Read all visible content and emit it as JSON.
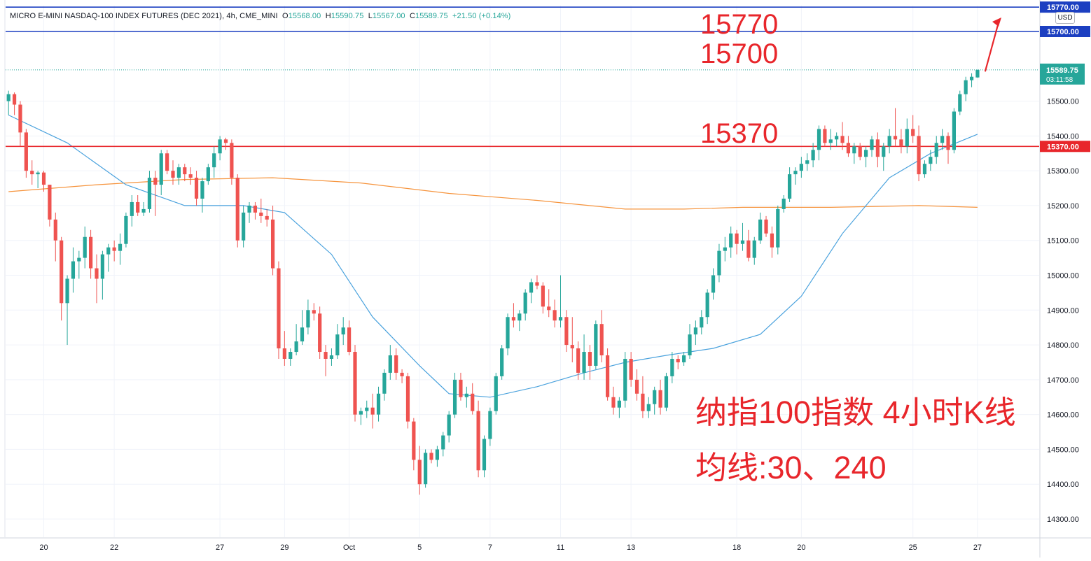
{
  "header": {
    "symbol": "MICRO E-MINI NASDAQ-100 INDEX FUTURES (DEC 2021), 4h, CME_MINI",
    "o_label": "O",
    "o_value": "15568.00",
    "h_label": "H",
    "h_value": "15590.75",
    "l_label": "L",
    "l_value": "15567.00",
    "c_label": "C",
    "c_value": "15589.75",
    "change": "+21.50 (+0.14%)"
  },
  "currency_label": "USD",
  "annotations": {
    "level_15770": "15770",
    "level_15700": "15700",
    "level_15370": "15370",
    "title_line1": "纳指100指数 4小时K线",
    "title_line2": "均线:30、240"
  },
  "chart_data": {
    "type": "candlestick",
    "title": "",
    "timeframe": "4h",
    "xlabel": "",
    "ylabel": "",
    "ylim": [
      14270,
      15780
    ],
    "grid": true,
    "colors": {
      "up": "#26a69a",
      "down": "#ef5350",
      "ma30": "#4aa2dd",
      "ma240": "#f6943d",
      "hline_blue": "#1c3fc1",
      "hline_red": "#e8262b",
      "annotation": "#e8262b",
      "last_price": "#26a69a"
    },
    "y_ticks": [
      "14300.00",
      "14400.00",
      "14500.00",
      "14600.00",
      "14700.00",
      "14800.00",
      "14900.00",
      "15000.00",
      "15100.00",
      "15200.00",
      "15300.00",
      "15400.00",
      "15500.00"
    ],
    "x_ticks": [
      {
        "label": "20",
        "x": 6
      },
      {
        "label": "22",
        "x": 18
      },
      {
        "label": "27",
        "x": 36
      },
      {
        "label": "29",
        "x": 47
      },
      {
        "label": "Oct",
        "x": 58
      },
      {
        "label": "5",
        "x": 70
      },
      {
        "label": "7",
        "x": 82
      },
      {
        "label": "11",
        "x": 94
      },
      {
        "label": "13",
        "x": 106
      },
      {
        "label": "18",
        "x": 124
      },
      {
        "label": "20",
        "x": 135
      },
      {
        "label": "25",
        "x": 154
      },
      {
        "label": "27",
        "x": 165
      }
    ],
    "x_range": [
      -0.5,
      175.5
    ],
    "horizontal_lines": [
      {
        "value": 15770,
        "label": "15770.00",
        "color": "#1c3fc1"
      },
      {
        "value": 15700,
        "label": "15700.00",
        "color": "#1c3fc1"
      },
      {
        "value": 15370,
        "label": "15370.00",
        "color": "#e8262b"
      }
    ],
    "last_price": {
      "label": "15589.75",
      "countdown": "03:11:58",
      "value": 15589.75
    },
    "candles": [
      [
        0,
        15500,
        15530,
        15460,
        15520
      ],
      [
        1,
        15520,
        15525,
        15460,
        15490
      ],
      [
        2,
        15490,
        15500,
        15370,
        15410
      ],
      [
        3,
        15410,
        15420,
        15280,
        15300
      ],
      [
        4,
        15300,
        15330,
        15260,
        15290
      ],
      [
        5,
        15290,
        15300,
        15250,
        15295
      ],
      [
        6,
        15295,
        15300,
        15240,
        15260
      ],
      [
        7,
        15260,
        15260,
        15140,
        15160
      ],
      [
        8,
        15160,
        15180,
        15040,
        15100
      ],
      [
        9,
        15100,
        15110,
        14870,
        14920
      ],
      [
        10,
        14920,
        15000,
        14800,
        14990
      ],
      [
        11,
        14990,
        15080,
        14950,
        15040
      ],
      [
        12,
        15040,
        15070,
        14990,
        15050
      ],
      [
        13,
        15050,
        15140,
        15020,
        15110
      ],
      [
        14,
        15110,
        15130,
        14990,
        15020
      ],
      [
        15,
        15020,
        15060,
        14920,
        14990
      ],
      [
        16,
        14990,
        15070,
        14930,
        15060
      ],
      [
        17,
        15060,
        15090,
        15010,
        15080
      ],
      [
        18,
        15080,
        15100,
        15040,
        15070
      ],
      [
        19,
        15070,
        15120,
        15030,
        15090
      ],
      [
        20,
        15090,
        15180,
        15080,
        15170
      ],
      [
        21,
        15170,
        15230,
        15140,
        15210
      ],
      [
        22,
        15210,
        15230,
        15170,
        15180
      ],
      [
        23,
        15180,
        15210,
        15170,
        15190
      ],
      [
        24,
        15190,
        15300,
        15180,
        15280
      ],
      [
        25,
        15280,
        15300,
        15170,
        15260
      ],
      [
        26,
        15260,
        15360,
        15230,
        15350
      ],
      [
        27,
        15350,
        15360,
        15290,
        15300
      ],
      [
        28,
        15300,
        15330,
        15260,
        15280
      ],
      [
        29,
        15280,
        15320,
        15260,
        15310
      ],
      [
        30,
        15310,
        15320,
        15270,
        15290
      ],
      [
        31,
        15290,
        15310,
        15260,
        15280
      ],
      [
        32,
        15280,
        15300,
        15200,
        15220
      ],
      [
        33,
        15220,
        15280,
        15180,
        15270
      ],
      [
        34,
        15270,
        15320,
        15260,
        15310
      ],
      [
        35,
        15310,
        15370,
        15280,
        15350
      ],
      [
        36,
        15350,
        15400,
        15330,
        15390
      ],
      [
        37,
        15390,
        15395,
        15360,
        15380
      ],
      [
        38,
        15380,
        15390,
        15260,
        15280
      ],
      [
        39,
        15280,
        15290,
        15080,
        15100
      ],
      [
        40,
        15100,
        15200,
        15080,
        15180
      ],
      [
        41,
        15180,
        15210,
        15150,
        15200
      ],
      [
        42,
        15200,
        15210,
        15160,
        15180
      ],
      [
        43,
        15180,
        15220,
        15150,
        15170
      ],
      [
        44,
        15170,
        15190,
        15140,
        15160
      ],
      [
        45,
        15160,
        15200,
        15000,
        15020
      ],
      [
        46,
        15020,
        15040,
        14760,
        14790
      ],
      [
        47,
        14790,
        14840,
        14740,
        14760
      ],
      [
        48,
        14760,
        14790,
        14740,
        14780
      ],
      [
        49,
        14780,
        14860,
        14770,
        14810
      ],
      [
        50,
        14810,
        14900,
        14800,
        14850
      ],
      [
        51,
        14850,
        14930,
        14830,
        14900
      ],
      [
        52,
        14900,
        14920,
        14870,
        14890
      ],
      [
        53,
        14890,
        14910,
        14760,
        14780
      ],
      [
        54,
        14780,
        14800,
        14710,
        14760
      ],
      [
        55,
        14760,
        14790,
        14740,
        14770
      ],
      [
        56,
        14770,
        14860,
        14760,
        14830
      ],
      [
        57,
        14830,
        14880,
        14800,
        14850
      ],
      [
        58,
        14850,
        14870,
        14770,
        14780
      ],
      [
        59,
        14780,
        14800,
        14580,
        14600
      ],
      [
        60,
        14600,
        14620,
        14570,
        14610
      ],
      [
        61,
        14610,
        14640,
        14590,
        14620
      ],
      [
        62,
        14620,
        14660,
        14560,
        14600
      ],
      [
        63,
        14600,
        14680,
        14580,
        14660
      ],
      [
        64,
        14660,
        14730,
        14640,
        14720
      ],
      [
        65,
        14720,
        14800,
        14700,
        14770
      ],
      [
        66,
        14770,
        14790,
        14700,
        14720
      ],
      [
        67,
        14720,
        14730,
        14690,
        14710
      ],
      [
        68,
        14710,
        14720,
        14560,
        14580
      ],
      [
        69,
        14580,
        14590,
        14440,
        14470
      ],
      [
        70,
        14470,
        14510,
        14370,
        14400
      ],
      [
        71,
        14400,
        14500,
        14390,
        14490
      ],
      [
        72,
        14490,
        14500,
        14460,
        14470
      ],
      [
        73,
        14470,
        14510,
        14450,
        14500
      ],
      [
        74,
        14500,
        14550,
        14480,
        14540
      ],
      [
        75,
        14540,
        14610,
        14520,
        14600
      ],
      [
        76,
        14600,
        14720,
        14590,
        14700
      ],
      [
        77,
        14700,
        14720,
        14640,
        14650
      ],
      [
        78,
        14650,
        14680,
        14620,
        14660
      ],
      [
        79,
        14660,
        14690,
        14600,
        14610
      ],
      [
        80,
        14610,
        14640,
        14420,
        14440
      ],
      [
        81,
        14440,
        14540,
        14420,
        14530
      ],
      [
        82,
        14530,
        14620,
        14510,
        14610
      ],
      [
        83,
        14610,
        14720,
        14600,
        14710
      ],
      [
        84,
        14710,
        14800,
        14700,
        14790
      ],
      [
        85,
        14790,
        14890,
        14770,
        14880
      ],
      [
        86,
        14880,
        14920,
        14850,
        14870
      ],
      [
        87,
        14870,
        14900,
        14840,
        14890
      ],
      [
        88,
        14890,
        14960,
        14870,
        14950
      ],
      [
        89,
        14950,
        14990,
        14920,
        14980
      ],
      [
        90,
        14980,
        15000,
        14960,
        14970
      ],
      [
        91,
        14970,
        14980,
        14890,
        14910
      ],
      [
        92,
        14910,
        14960,
        14880,
        14900
      ],
      [
        93,
        14900,
        14930,
        14850,
        14870
      ],
      [
        94,
        14870,
        15000,
        14850,
        14880
      ],
      [
        95,
        14880,
        14900,
        14780,
        14800
      ],
      [
        96,
        14800,
        14880,
        14750,
        14790
      ],
      [
        97,
        14790,
        14810,
        14700,
        14720
      ],
      [
        98,
        14720,
        14830,
        14700,
        14780
      ],
      [
        99,
        14780,
        14800,
        14700,
        14740
      ],
      [
        100,
        14740,
        14870,
        14730,
        14860
      ],
      [
        101,
        14860,
        14900,
        14750,
        14770
      ],
      [
        102,
        14770,
        14790,
        14640,
        14650
      ],
      [
        103,
        14650,
        14680,
        14600,
        14620
      ],
      [
        104,
        14620,
        14650,
        14590,
        14640
      ],
      [
        105,
        14640,
        14780,
        14620,
        14760
      ],
      [
        106,
        14760,
        14780,
        14680,
        14700
      ],
      [
        107,
        14700,
        14730,
        14640,
        14660
      ],
      [
        108,
        14660,
        14710,
        14590,
        14610
      ],
      [
        109,
        14610,
        14650,
        14590,
        14630
      ],
      [
        110,
        14630,
        14680,
        14600,
        14670
      ],
      [
        111,
        14670,
        14700,
        14600,
        14620
      ],
      [
        112,
        14620,
        14720,
        14610,
        14710
      ],
      [
        113,
        14710,
        14780,
        14690,
        14760
      ],
      [
        114,
        14760,
        14770,
        14730,
        14750
      ],
      [
        115,
        14750,
        14780,
        14740,
        14770
      ],
      [
        116,
        14770,
        14860,
        14760,
        14830
      ],
      [
        117,
        14830,
        14870,
        14800,
        14850
      ],
      [
        118,
        14850,
        14900,
        14830,
        14880
      ],
      [
        119,
        14880,
        14960,
        14860,
        14950
      ],
      [
        120,
        14950,
        15020,
        14930,
        15000
      ],
      [
        121,
        15000,
        15090,
        14980,
        15070
      ],
      [
        122,
        15070,
        15110,
        15040,
        15080
      ],
      [
        123,
        15080,
        15140,
        15050,
        15120
      ],
      [
        124,
        15120,
        15130,
        15060,
        15090
      ],
      [
        125,
        15090,
        15150,
        15070,
        15100
      ],
      [
        126,
        15100,
        15130,
        15040,
        15050
      ],
      [
        127,
        15050,
        15110,
        15030,
        15100
      ],
      [
        128,
        15100,
        15180,
        15090,
        15160
      ],
      [
        129,
        15160,
        15170,
        15110,
        15120
      ],
      [
        130,
        15120,
        15140,
        15050,
        15080
      ],
      [
        131,
        15080,
        15200,
        15060,
        15190
      ],
      [
        132,
        15190,
        15230,
        15180,
        15220
      ],
      [
        133,
        15220,
        15310,
        15210,
        15290
      ],
      [
        134,
        15290,
        15310,
        15260,
        15300
      ],
      [
        135,
        15300,
        15340,
        15280,
        15320
      ],
      [
        136,
        15320,
        15350,
        15300,
        15330
      ],
      [
        137,
        15330,
        15380,
        15310,
        15360
      ],
      [
        138,
        15360,
        15430,
        15330,
        15420
      ],
      [
        139,
        15420,
        15430,
        15370,
        15380
      ],
      [
        140,
        15380,
        15420,
        15360,
        15390
      ],
      [
        141,
        15390,
        15410,
        15370,
        15400
      ],
      [
        142,
        15400,
        15440,
        15360,
        15380
      ],
      [
        143,
        15380,
        15400,
        15340,
        15350
      ],
      [
        144,
        15350,
        15380,
        15320,
        15370
      ],
      [
        145,
        15370,
        15380,
        15330,
        15340
      ],
      [
        146,
        15340,
        15370,
        15310,
        15360
      ],
      [
        147,
        15360,
        15400,
        15340,
        15390
      ],
      [
        148,
        15390,
        15410,
        15310,
        15340
      ],
      [
        149,
        15340,
        15380,
        15300,
        15370
      ],
      [
        150,
        15370,
        15420,
        15350,
        15400
      ],
      [
        151,
        15400,
        15480,
        15370,
        15390
      ],
      [
        152,
        15390,
        15420,
        15350,
        15370
      ],
      [
        153,
        15370,
        15450,
        15350,
        15420
      ],
      [
        154,
        15420,
        15460,
        15380,
        15400
      ],
      [
        155,
        15400,
        15430,
        15270,
        15290
      ],
      [
        156,
        15290,
        15330,
        15280,
        15320
      ],
      [
        157,
        15320,
        15360,
        15300,
        15340
      ],
      [
        158,
        15340,
        15400,
        15320,
        15380
      ],
      [
        159,
        15380,
        15420,
        15360,
        15400
      ],
      [
        160,
        15400,
        15410,
        15320,
        15360
      ],
      [
        161,
        15360,
        15480,
        15350,
        15470
      ],
      [
        162,
        15470,
        15530,
        15460,
        15520
      ],
      [
        163,
        15520,
        15570,
        15500,
        15560
      ],
      [
        164,
        15560,
        15580,
        15540,
        15570
      ],
      [
        165,
        15568,
        15590.75,
        15567,
        15589.75
      ]
    ],
    "ma30": [
      [
        0,
        15460
      ],
      [
        10,
        15380
      ],
      [
        20,
        15260
      ],
      [
        30,
        15200
      ],
      [
        40,
        15200
      ],
      [
        47,
        15180
      ],
      [
        55,
        15060
      ],
      [
        62,
        14880
      ],
      [
        70,
        14740
      ],
      [
        75,
        14660
      ],
      [
        82,
        14650
      ],
      [
        90,
        14680
      ],
      [
        98,
        14720
      ],
      [
        105,
        14750
      ],
      [
        112,
        14770
      ],
      [
        120,
        14790
      ],
      [
        128,
        14830
      ],
      [
        135,
        14940
      ],
      [
        142,
        15120
      ],
      [
        150,
        15280
      ],
      [
        157,
        15350
      ],
      [
        165,
        15405
      ]
    ],
    "ma240": [
      [
        0,
        15240
      ],
      [
        15,
        15260
      ],
      [
        30,
        15275
      ],
      [
        45,
        15280
      ],
      [
        60,
        15265
      ],
      [
        75,
        15235
      ],
      [
        90,
        15215
      ],
      [
        105,
        15190
      ],
      [
        115,
        15190
      ],
      [
        125,
        15195
      ],
      [
        140,
        15195
      ],
      [
        155,
        15200
      ],
      [
        165,
        15195
      ]
    ]
  }
}
